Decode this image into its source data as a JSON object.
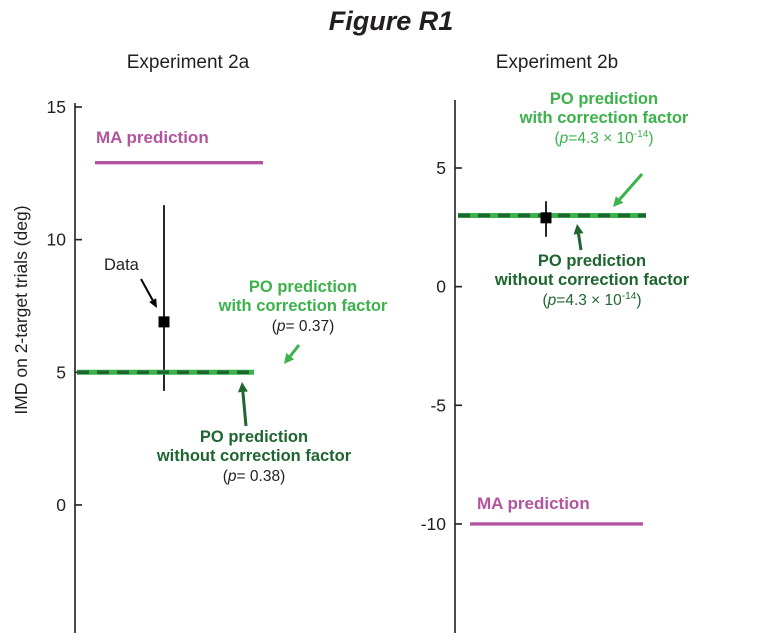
{
  "chart_data": {
    "type": "line",
    "figure_title": "Figure R1",
    "ylabel": "IMD on 2-target trials (deg)",
    "legend_position": "none",
    "grid": false,
    "colors": {
      "ma": "#b2559e",
      "po_with": "#3cb24b",
      "po_without": "#1e652f",
      "data": "#000000",
      "text": "#231f20"
    },
    "panels": [
      {
        "title": "Experiment 2a",
        "yticks": [
          "15",
          "10",
          "5",
          "0"
        ],
        "ytick_values": [
          15,
          10,
          5,
          0
        ],
        "ylim": [
          -4.9,
          15.2
        ],
        "ma": {
          "label": "MA prediction",
          "value": 12.9
        },
        "po_with": {
          "label_line1": "PO prediction",
          "label_line2": "with correction factor",
          "value": 5.0,
          "p_pre": "(",
          "p_var": "p",
          "p_mid": "= 0.37)",
          "p_sup": "",
          "p_post": ""
        },
        "po_without": {
          "label_line1": "PO prediction",
          "label_line2": "without correction factor",
          "value": 5.0,
          "p_pre": "(",
          "p_var": "p",
          "p_mid": "= 0.38)",
          "p_sup": "",
          "p_post": ""
        },
        "data": {
          "label": "Data",
          "value": 6.9,
          "err_high": 11.3,
          "err_low": 4.3
        }
      },
      {
        "title": "Experiment 2b",
        "yticks": [
          "5",
          "0",
          "-5",
          "-10"
        ],
        "ytick_values": [
          5,
          0,
          -5,
          -10
        ],
        "ylim": [
          -14.6,
          7.9
        ],
        "ma": {
          "label": "MA prediction",
          "value": -10.0
        },
        "po_with": {
          "label_line1": "PO prediction",
          "label_line2": "with correction factor",
          "value": 3.0,
          "p_pre": "(",
          "p_var": "p",
          "p_mid": "=4.3 × 10",
          "p_sup": "-14",
          "p_post": ")"
        },
        "po_without": {
          "label_line1": "PO prediction",
          "label_line2": "without correction factor",
          "value": 3.0,
          "p_pre": "(",
          "p_var": "p",
          "p_mid": "=4.3 × 10",
          "p_sup": "-14",
          "p_post": ")"
        },
        "data": {
          "value": 2.9,
          "err_high": 3.6,
          "err_low": 2.1
        }
      }
    ]
  }
}
